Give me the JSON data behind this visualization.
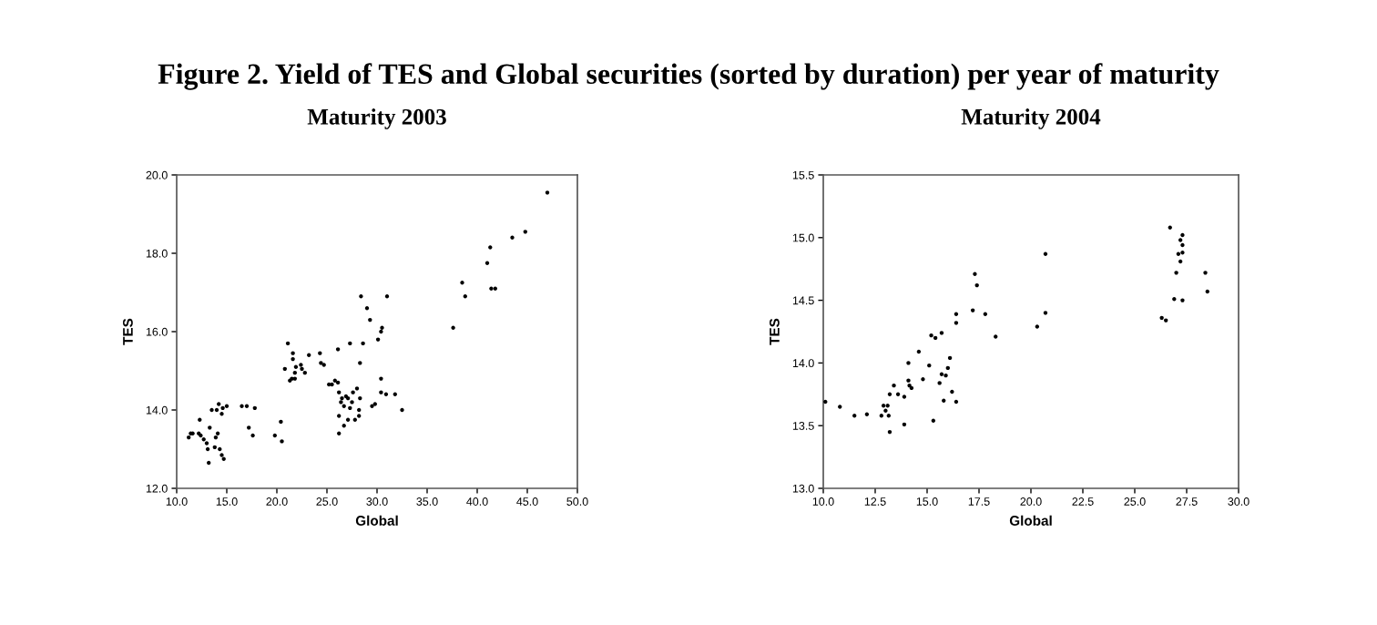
{
  "chart_data": [
    {
      "type": "scatter",
      "title": "Figure 2. Yield of TES and Global securities (sorted by duration) per year of maturity",
      "subtitle": "Maturity 2003",
      "xlabel": "Global",
      "ylabel": "TES",
      "marker": "circle",
      "grid": false,
      "xlim": [
        10,
        50
      ],
      "xticks": [
        {
          "value": 10,
          "label": "10.0"
        },
        {
          "value": 15,
          "label": "15.0"
        },
        {
          "value": 20,
          "label": "20.0"
        },
        {
          "value": 25,
          "label": "25.0"
        },
        {
          "value": 30,
          "label": "30.0"
        },
        {
          "value": 35,
          "label": "35.0"
        },
        {
          "value": 40,
          "label": "40.0"
        },
        {
          "value": 45,
          "label": "45.0"
        },
        {
          "value": 50,
          "label": "50.0"
        }
      ],
      "ylim": [
        12,
        20
      ],
      "yticks": [
        {
          "value": 12,
          "label": "12.0"
        },
        {
          "value": 14,
          "label": "14.0"
        },
        {
          "value": 16,
          "label": "16.0"
        },
        {
          "value": 18,
          "label": "18.0"
        },
        {
          "value": 20,
          "label": "20.0"
        }
      ],
      "series": [
        {
          "color": "#000000",
          "x": [
            11.2,
            11.4,
            11.6,
            12.3,
            12.2,
            12.4,
            12.7,
            13.0,
            13.1,
            13.2,
            13.3,
            13.5,
            13.8,
            13.9,
            14.1,
            14.0,
            14.2,
            14.3,
            14.5,
            14.6,
            14.5,
            14.7,
            15.0,
            16.5,
            17.0,
            17.2,
            17.6,
            17.8,
            19.8,
            20.4,
            20.5,
            20.8,
            21.1,
            21.3,
            21.5,
            21.6,
            21.6,
            21.8,
            21.8,
            21.9,
            22.4,
            22.5,
            22.8,
            23.2,
            24.3,
            24.4,
            24.7,
            25.2,
            25.5,
            25.8,
            26.1,
            26.1,
            26.2,
            26.2,
            26.2,
            26.4,
            26.5,
            26.7,
            26.7,
            26.9,
            27.1,
            27.1,
            27.3,
            27.3,
            27.5,
            27.6,
            27.8,
            28.0,
            28.2,
            28.2,
            28.3,
            28.4,
            28.3,
            28.6,
            29.0,
            29.3,
            29.5,
            29.8,
            30.1,
            30.4,
            30.5,
            30.4,
            30.4,
            30.9,
            31.0,
            31.8,
            32.5,
            37.6,
            38.5,
            38.8,
            41.0,
            41.3,
            41.4,
            41.8,
            43.5,
            44.8,
            47.0
          ],
          "values": [
            13.3,
            13.4,
            13.4,
            13.75,
            13.4,
            13.35,
            13.25,
            13.15,
            13.0,
            12.65,
            13.55,
            14.0,
            13.05,
            13.3,
            13.4,
            14.0,
            14.15,
            13.0,
            13.9,
            14.05,
            12.85,
            12.75,
            14.1,
            14.1,
            14.1,
            13.55,
            13.35,
            14.05,
            13.35,
            13.7,
            13.2,
            15.05,
            15.7,
            14.75,
            14.8,
            15.45,
            15.3,
            14.95,
            14.8,
            15.1,
            15.15,
            15.05,
            14.95,
            15.4,
            15.45,
            15.2,
            15.15,
            14.65,
            14.65,
            14.75,
            15.55,
            14.7,
            14.45,
            13.85,
            13.4,
            14.2,
            14.3,
            13.6,
            14.1,
            14.35,
            13.75,
            14.3,
            15.7,
            14.05,
            14.2,
            14.45,
            13.75,
            14.55,
            13.85,
            14.0,
            15.2,
            16.9,
            14.3,
            15.7,
            16.6,
            16.3,
            14.1,
            14.15,
            15.8,
            16.0,
            16.1,
            14.8,
            14.45,
            14.4,
            16.9,
            14.4,
            14.0,
            16.1,
            17.25,
            16.9,
            17.75,
            18.15,
            17.1,
            17.1,
            18.4,
            18.55,
            19.55
          ]
        }
      ]
    },
    {
      "type": "scatter",
      "title": "Maturity 2004",
      "xlabel": "Global",
      "ylabel": "TES",
      "marker": "circle",
      "grid": false,
      "xlim": [
        10,
        30
      ],
      "xticks": [
        {
          "value": 10,
          "label": "10.0"
        },
        12.5,
        {
          "value": 15,
          "label": "15.0"
        },
        17.5,
        {
          "value": 20,
          "label": "20.0"
        },
        22.5,
        {
          "value": 25,
          "label": "25.0"
        },
        27.5,
        {
          "value": 30,
          "label": "30.0"
        }
      ],
      "ylim": [
        13,
        15.5
      ],
      "yticks": [
        {
          "value": 13,
          "label": "13.0"
        },
        13.5,
        {
          "value": 14,
          "label": "14.0"
        },
        14.5,
        {
          "value": 15,
          "label": "15.0"
        },
        15.5
      ],
      "series": [
        {
          "color": "#000000",
          "x": [
            10.1,
            10.8,
            11.5,
            12.1,
            12.8,
            12.9,
            13.0,
            13.1,
            13.15,
            13.2,
            13.2,
            13.4,
            13.6,
            13.9,
            13.9,
            14.1,
            14.1,
            14.15,
            14.25,
            14.6,
            14.8,
            15.1,
            15.2,
            15.4,
            15.3,
            15.6,
            15.7,
            15.7,
            15.8,
            15.9,
            16.0,
            16.1,
            16.2,
            16.4,
            16.4,
            16.4,
            17.2,
            17.3,
            17.4,
            17.8,
            18.3,
            20.3,
            20.7,
            20.7,
            26.3,
            26.5,
            26.7,
            26.9,
            27.0,
            27.1,
            27.2,
            27.2,
            27.3,
            27.3,
            27.3,
            27.3,
            28.4,
            28.5
          ],
          "values": [
            13.69,
            13.65,
            13.58,
            13.59,
            13.58,
            13.66,
            13.62,
            13.66,
            13.58,
            13.45,
            13.75,
            13.82,
            13.75,
            13.73,
            13.51,
            14.0,
            13.86,
            13.82,
            13.8,
            14.09,
            13.87,
            13.98,
            14.22,
            14.2,
            13.54,
            13.84,
            13.91,
            14.24,
            13.7,
            13.9,
            13.96,
            14.04,
            13.77,
            14.32,
            14.39,
            13.69,
            14.42,
            14.71,
            14.62,
            14.39,
            14.21,
            14.29,
            14.4,
            14.87,
            14.36,
            14.34,
            15.08,
            14.51,
            14.72,
            14.87,
            14.81,
            14.98,
            15.02,
            14.94,
            14.5,
            14.88,
            14.72,
            14.57
          ]
        }
      ]
    }
  ]
}
